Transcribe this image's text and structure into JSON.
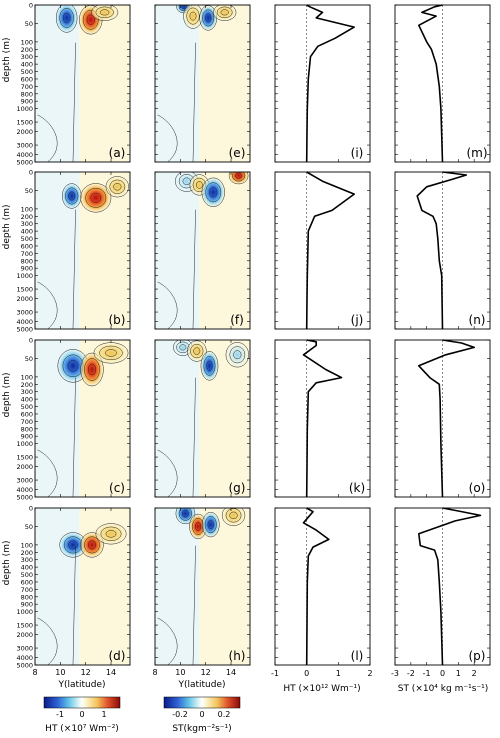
{
  "figure": {
    "colorbars": [
      {
        "label": "HT (×10⁷ Wm⁻²)",
        "ticks": [
          "-1",
          "0",
          "1"
        ]
      },
      {
        "label": "ST(kgm⁻²s⁻¹)",
        "ticks": [
          "-0.2",
          "0",
          "0.2"
        ]
      }
    ]
  },
  "chart_data": [
    {
      "type": "heatmap",
      "panel": "(a)",
      "variable": "HT",
      "ylabel": "depth (m)"
    },
    {
      "type": "heatmap",
      "panel": "(b)",
      "variable": "HT",
      "ylabel": "depth (m)"
    },
    {
      "type": "heatmap",
      "panel": "(c)",
      "variable": "HT",
      "ylabel": "depth (m)"
    },
    {
      "type": "heatmap",
      "panel": "(d)",
      "variable": "HT",
      "ylabel": "depth (m)",
      "xlabel": "Y(latitude)"
    },
    {
      "type": "heatmap",
      "panel": "(e)",
      "variable": "ST"
    },
    {
      "type": "heatmap",
      "panel": "(f)",
      "variable": "ST"
    },
    {
      "type": "heatmap",
      "panel": "(g)",
      "variable": "ST"
    },
    {
      "type": "heatmap",
      "panel": "(h)",
      "variable": "ST",
      "xlabel": "Y(latitude)"
    },
    {
      "type": "line",
      "panel": "(i)",
      "xlim": [
        -1,
        2
      ]
    },
    {
      "type": "line",
      "panel": "(j)",
      "xlim": [
        -1,
        2
      ]
    },
    {
      "type": "line",
      "panel": "(k)",
      "xlim": [
        -1,
        2
      ]
    },
    {
      "type": "line",
      "panel": "(l)",
      "xlim": [
        -1,
        2
      ],
      "xlabel": "HT (×10¹² Wm⁻¹)"
    },
    {
      "type": "line",
      "panel": "(m)",
      "xlim": [
        -3,
        3
      ]
    },
    {
      "type": "line",
      "panel": "(n)",
      "xlim": [
        -3,
        3
      ]
    },
    {
      "type": "line",
      "panel": "(o)",
      "xlim": [
        -3,
        3
      ]
    },
    {
      "type": "line",
      "panel": "(p)",
      "xlim": [
        -3,
        3
      ],
      "xlabel": "ST (×10⁴ kg m⁻¹s⁻¹)"
    }
  ],
  "axes": {
    "depth_ticks": [
      "0",
      "50",
      "100",
      "200",
      "300",
      "400",
      "500",
      "600",
      "700",
      "800",
      "900",
      "1000",
      "1500",
      "2000",
      "3000",
      "4000",
      "5000"
    ],
    "lat_ticks": [
      "8",
      "10",
      "12",
      "14"
    ],
    "ht_ticks": [
      "-1",
      "0",
      "1",
      "2"
    ],
    "st_ticks": [
      "-3",
      "-2",
      "-1",
      "0",
      "1",
      "2"
    ]
  }
}
